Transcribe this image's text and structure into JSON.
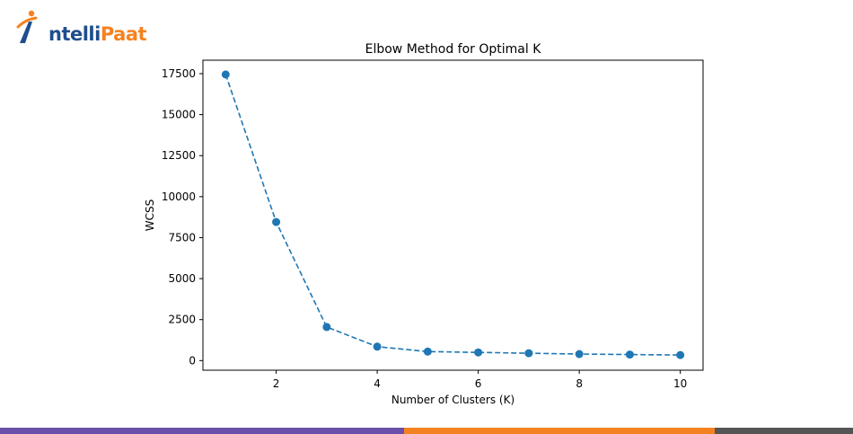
{
  "logo": {
    "name": "IntelliPaat",
    "text_prefix": "ntelli",
    "text_suffix": "Paat",
    "colors": {
      "orange": "#f58220",
      "blue": "#1f4e8c"
    }
  },
  "chart_data": {
    "type": "line",
    "title": "Elbow Method for Optimal K",
    "xlabel": "Number of Clusters (K)",
    "ylabel": "WCSS",
    "x": [
      1,
      2,
      3,
      4,
      5,
      6,
      7,
      8,
      9,
      10
    ],
    "series": [
      {
        "values": [
          17450,
          8450,
          2050,
          850,
          550,
          500,
          450,
          400,
          370,
          340
        ],
        "color": "#1f77b4",
        "line_style": "dashed",
        "marker": "circle"
      }
    ],
    "xticks": [
      2,
      4,
      6,
      8,
      10
    ],
    "yticks": [
      0,
      2500,
      5000,
      7500,
      10000,
      12500,
      15000,
      17500
    ],
    "ytick_labels": [
      "0",
      "2500",
      "5000",
      "7500",
      "10000",
      "12500",
      "15000",
      "17500"
    ],
    "xlim": [
      0.55,
      10.45
    ],
    "ylim": [
      -585,
      18320
    ],
    "grid": false,
    "legend": false
  },
  "footer": {
    "colors": [
      "#6b4fa8",
      "#6b4fa8",
      "#f58220",
      "#555555"
    ]
  }
}
